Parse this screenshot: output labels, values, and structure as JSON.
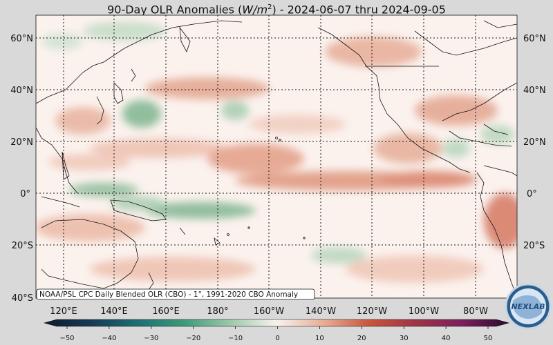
{
  "title": "90-Day OLR Anomalies (W/m²) - 2024-06-07 thru 2024-09-05",
  "title_parts": {
    "prefix": "90-Day OLR Anomalies (",
    "units": "W/m",
    "units_sup": "2",
    "suffix": ") - 2024-06-07 thru 2024-09-05"
  },
  "source_note": "NOAA/PSL CPC Daily Blended OLR (CBO) - 1°, 1991-2020 CBO Anomaly",
  "lat_labels": [
    "60°N",
    "40°N",
    "20°N",
    "0°",
    "20°S",
    "40°S"
  ],
  "lon_labels": [
    "120°E",
    "140°E",
    "160°E",
    "180°",
    "160°W",
    "140°W",
    "120°W",
    "100°W",
    "80°W"
  ],
  "colorbar": {
    "ticks": [
      "−50",
      "−40",
      "−30",
      "−20",
      "−10",
      "0",
      "10",
      "20",
      "30",
      "40",
      "50"
    ],
    "min": -50,
    "max": 50
  },
  "logo_text": "NEXLAB",
  "colors": {
    "positive": "#c8553d",
    "negative": "#3f8f5f",
    "neutral": "#fbf2ee"
  }
}
